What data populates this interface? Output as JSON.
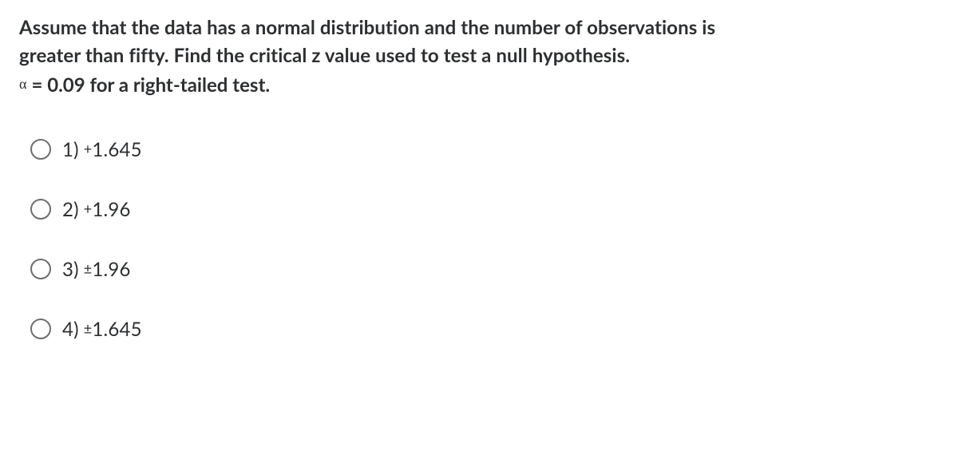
{
  "question": {
    "stem_line1": "Assume that the data has a normal distribution and the number of observations is",
    "stem_line2": "greater than fifty. Find the critical z value used to test a null hypothesis.",
    "alpha_symbol": "α",
    "alpha_rest": " = 0.09 for a right-tailed test."
  },
  "options": [
    {
      "num": "1)",
      "sign": "+",
      "value": "1.645"
    },
    {
      "num": "2)",
      "sign": "+",
      "value": "1.96"
    },
    {
      "num": "3)",
      "sign": "±",
      "value": "1.96"
    },
    {
      "num": "4)",
      "sign": "±",
      "value": "1.645"
    }
  ],
  "colors": {
    "text": "#2d2f31",
    "radio_border": "#6e6e70",
    "background": "#ffffff"
  }
}
